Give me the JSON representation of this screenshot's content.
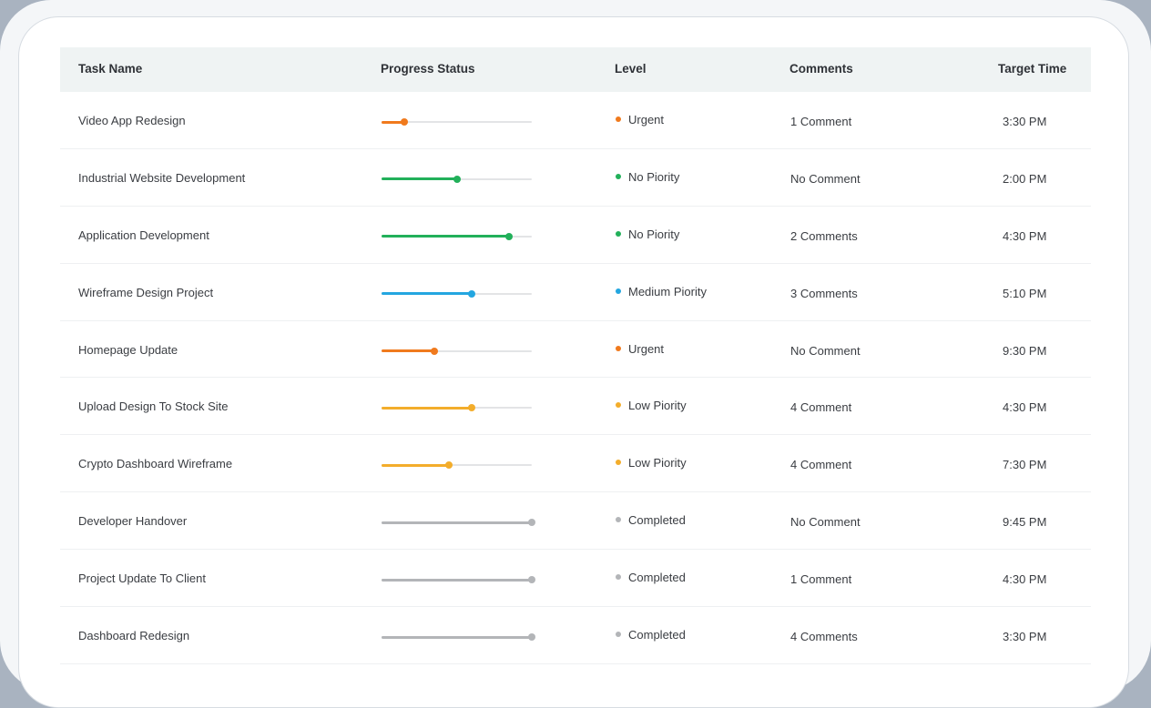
{
  "columns": {
    "task": "Task Name",
    "progress": "Progress Status",
    "level": "Level",
    "comments": "Comments",
    "time": "Target Time"
  },
  "colors": {
    "Urgent": "#f07a1d",
    "No Piority": "#22b05a",
    "Medium Piority": "#23a6e0",
    "Low Piority": "#f3ad2b",
    "Completed": "#b3b5b8"
  },
  "rows": [
    {
      "task": "Video App Redesign",
      "progress": 0.15,
      "level": "Urgent",
      "comments": "1 Comment",
      "time": "3:30 PM"
    },
    {
      "task": "Industrial  Website Development",
      "progress": 0.5,
      "level": "No Piority",
      "comments": "No Comment",
      "time": "2:00 PM"
    },
    {
      "task": "Application Development",
      "progress": 0.85,
      "level": "No Piority",
      "comments": "2 Comments",
      "time": "4:30 PM"
    },
    {
      "task": "Wireframe Design Project",
      "progress": 0.6,
      "level": "Medium Piority",
      "comments": "3 Comments",
      "time": "5:10 PM"
    },
    {
      "task": "Homepage Update",
      "progress": 0.35,
      "level": "Urgent",
      "comments": "No Comment",
      "time": "9:30 PM"
    },
    {
      "task": "Upload Design To Stock Site",
      "progress": 0.6,
      "level": "Low Piority",
      "comments": "4 Comment",
      "time": "4:30 PM"
    },
    {
      "task": "Crypto Dashboard Wireframe",
      "progress": 0.45,
      "level": "Low Piority",
      "comments": "4 Comment",
      "time": "7:30 PM"
    },
    {
      "task": "Developer Handover",
      "progress": 1.0,
      "level": "Completed",
      "comments": "No Comment",
      "time": "9:45 PM"
    },
    {
      "task": "Project Update To Client",
      "progress": 1.0,
      "level": "Completed",
      "comments": "1 Comment",
      "time": "4:30 PM"
    },
    {
      "task": "Dashboard Redesign",
      "progress": 1.0,
      "level": "Completed",
      "comments": "4 Comments",
      "time": "3:30 PM"
    }
  ]
}
